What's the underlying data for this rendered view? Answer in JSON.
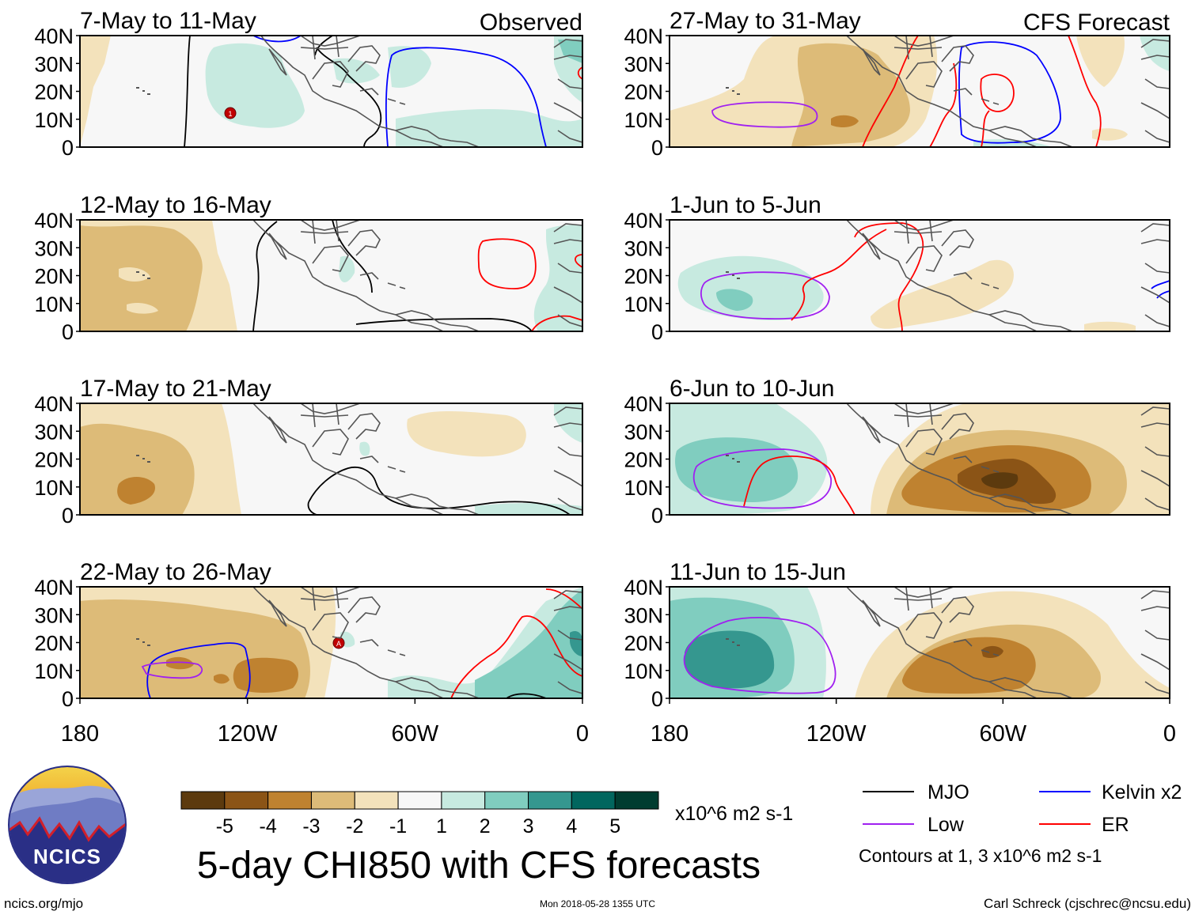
{
  "figure": {
    "title": "5-day CHI850 with CFS forecasts",
    "footer_left": "ncics.org/mjo",
    "footer_center": "Mon 2018-05-28 1355 UTC",
    "footer_right": "Carl Schreck (cjschrec@ncsu.edu)",
    "logo_text": "NCICS",
    "column_headers": {
      "observed": "Observed",
      "forecast": "CFS Forecast"
    }
  },
  "axes": {
    "lat_ticks": [
      "40N",
      "30N",
      "20N",
      "10N",
      "0"
    ],
    "lon_ticks": [
      "180",
      "120W",
      "60W",
      "0"
    ],
    "lon_range": [
      -180,
      0
    ],
    "lat_range": [
      0,
      40
    ]
  },
  "panels": [
    {
      "id": "p1",
      "column": "observed",
      "period": "7-May to 11-May"
    },
    {
      "id": "p2",
      "column": "observed",
      "period": "12-May to 16-May"
    },
    {
      "id": "p3",
      "column": "observed",
      "period": "17-May to 21-May"
    },
    {
      "id": "p4",
      "column": "observed",
      "period": "22-May to 26-May"
    },
    {
      "id": "p5",
      "column": "forecast",
      "period": "27-May to 31-May"
    },
    {
      "id": "p6",
      "column": "forecast",
      "period": "1-Jun to 5-Jun"
    },
    {
      "id": "p7",
      "column": "forecast",
      "period": "6-Jun to 10-Jun"
    },
    {
      "id": "p8",
      "column": "forecast",
      "period": "11-Jun to 15-Jun"
    }
  ],
  "colorbar": {
    "unit": "x10^6 m2 s-1",
    "tick_labels": [
      "-5",
      "-4",
      "-3",
      "-2",
      "-1",
      "1",
      "2",
      "3",
      "4",
      "5"
    ],
    "colors": [
      "#5c3a0e",
      "#8b5416",
      "#bf8230",
      "#ddbb78",
      "#f3e2bb",
      "#f7f7f7",
      "#c7eae0",
      "#80cdbf",
      "#35978f",
      "#01665e",
      "#003c30"
    ]
  },
  "legend": {
    "items": [
      {
        "label": "MJO",
        "color": "#000000"
      },
      {
        "label": "Kelvin x2",
        "color": "#0000ff"
      },
      {
        "label": "Low",
        "color": "#a020f0"
      },
      {
        "label": "ER",
        "color": "#ff0000"
      }
    ],
    "note": "Contours at 1, 3 x10^6 m2 s-1"
  }
}
